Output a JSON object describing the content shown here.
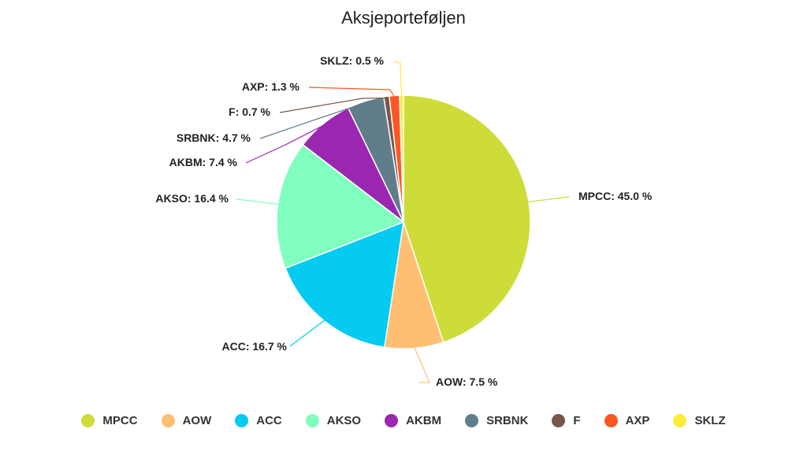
{
  "chart_data": {
    "type": "pie",
    "title": "Aksjeporteføljen",
    "start_angle_deg": 0,
    "direction": "clockwise",
    "legend_position": "bottom",
    "slices": [
      {
        "name": "MPCC",
        "value": 45.0,
        "label": "MPCC: 45.0 %",
        "color": "#cddc39"
      },
      {
        "name": "AOW",
        "value": 7.5,
        "label": "AOW: 7.5 %",
        "color": "#ffbf73"
      },
      {
        "name": "ACC",
        "value": 16.7,
        "label": "ACC: 16.7 %",
        "color": "#05cbf0"
      },
      {
        "name": "AKSO",
        "value": 16.4,
        "label": "AKSO: 16.4 %",
        "color": "#80ffbe"
      },
      {
        "name": "AKBM",
        "value": 7.4,
        "label": "AKBM: 7.4 %",
        "color": "#9b27b0"
      },
      {
        "name": "SRBNK",
        "value": 4.7,
        "label": "SRBNK: 4.7 %",
        "color": "#607d8b"
      },
      {
        "name": "F",
        "value": 0.7,
        "label": "F: 0.7 %",
        "color": "#795548"
      },
      {
        "name": "AXP",
        "value": 1.3,
        "label": "AXP: 1.3 %",
        "color": "#ff5722"
      },
      {
        "name": "SKLZ",
        "value": 0.5,
        "label": "SKLZ: 0.5 %",
        "color": "#ffeb3b"
      }
    ]
  }
}
